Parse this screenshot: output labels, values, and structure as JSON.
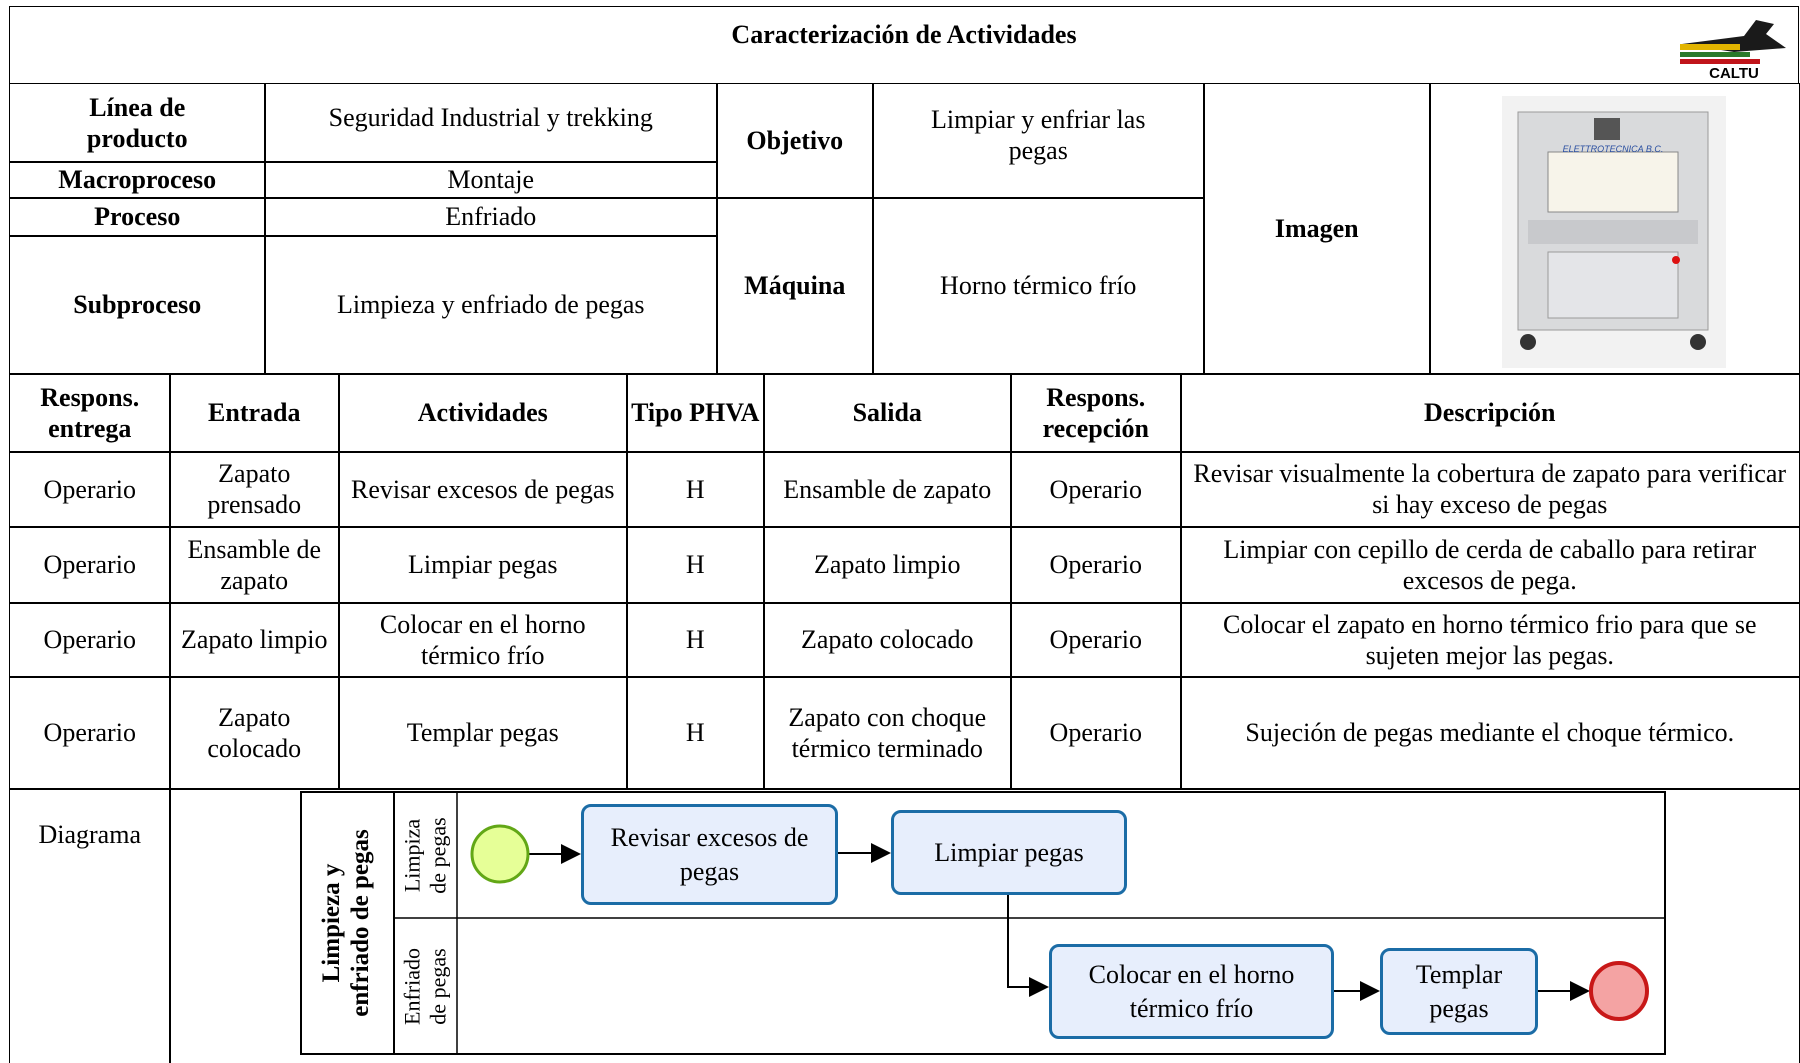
{
  "header": {
    "title": "Caracterización de Actividades",
    "logo_text": "CALTU"
  },
  "info": {
    "linea_label": "Línea de producto",
    "linea_value": "Seguridad Industrial y trekking",
    "macro_label": "Macroproceso",
    "macro_value": "Montaje",
    "proceso_label": "Proceso",
    "proceso_value": "Enfriado",
    "sub_label": "Subproceso",
    "sub_value": "Limpieza y enfriado de pegas",
    "objetivo_label": "Objetivo",
    "objetivo_value": "Limpiar y enfriar las pegas",
    "maquina_label": "Máquina",
    "maquina_value": "Horno térmico frío"
  },
  "image": {
    "label": "Imagen",
    "brand": "ELETTROTECNICA B.C."
  },
  "table": {
    "headers": [
      "Respons. entrega",
      "Entrada",
      "Actividades",
      "Tipo PHVA",
      "Salida",
      "Respons. recepción",
      "Descripción"
    ],
    "rows": [
      [
        "Operario",
        "Zapato prensado",
        "Revisar excesos de pegas",
        "H",
        "Ensamble de zapato",
        "Operario",
        "Revisar visualmente la cobertura de zapato para verificar si hay exceso de pegas"
      ],
      [
        "Operario",
        "Ensamble de zapato",
        "Limpiar pegas",
        "H",
        "Zapato limpio",
        "Operario",
        "Limpiar con cepillo de cerda de caballo para retirar excesos de pega."
      ],
      [
        "Operario",
        "Zapato limpio",
        "Colocar en el horno térmico frío",
        "H",
        "Zapato colocado",
        "Operario",
        "Colocar el zapato en horno térmico frio para que se sujeten mejor las pegas."
      ],
      [
        "Operario",
        "Zapato colocado",
        "Templar pegas",
        "H",
        "Zapato con choque térmico terminado",
        "Operario",
        "Sujeción de pegas mediante el choque térmico."
      ]
    ]
  },
  "diagram": {
    "label": "Diagrama",
    "pool": "Limpieza y enfriado de pegas",
    "lanes": [
      "Limpiza de pegas",
      "Enfriado de pegas"
    ],
    "tasks": [
      "Revisar excesos de pegas",
      "Limpiar pegas",
      "Colocar en el horno térmico frío",
      "Templar pegas"
    ]
  }
}
